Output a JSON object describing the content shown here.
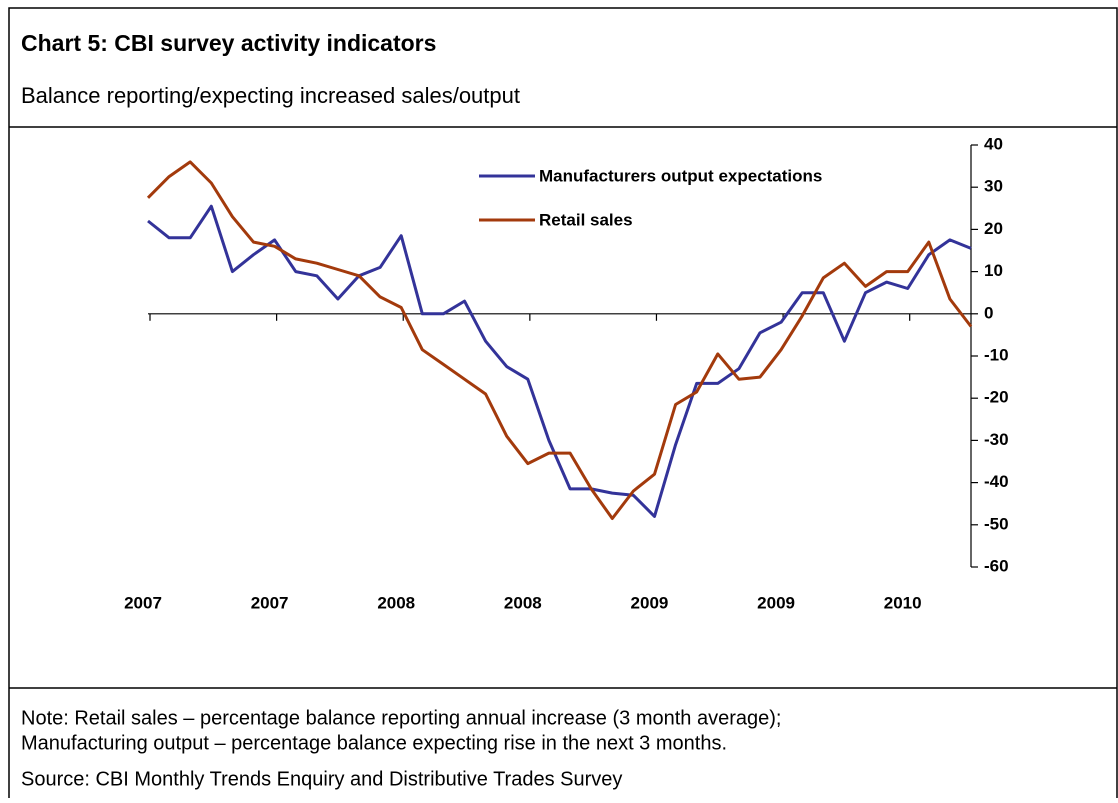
{
  "chart_data": {
    "type": "line",
    "title": "Chart 5: CBI survey activity indicators",
    "subtitle": "Balance reporting/expecting increased sales/output",
    "note": [
      "Note: Retail sales – percentage balance reporting annual increase (3 month average);",
      "Manufacturing output – percentage balance expecting rise in the next 3 months."
    ],
    "source": "Source: CBI Monthly Trends Enquiry and Distributive Trades Survey",
    "categories": [
      "2007",
      null,
      null,
      null,
      null,
      null,
      "2007",
      null,
      null,
      null,
      null,
      null,
      "2008",
      null,
      null,
      null,
      null,
      null,
      "2008",
      null,
      null,
      null,
      null,
      null,
      "2009",
      null,
      null,
      null,
      null,
      null,
      "2009",
      null,
      null,
      null,
      null,
      null,
      "2010",
      null,
      null,
      null
    ],
    "series": [
      {
        "name": "Manufacturers output expectations",
        "color": "#333399",
        "values": [
          22,
          18,
          18,
          25.5,
          10,
          14,
          17.5,
          10,
          9,
          3.5,
          9,
          11,
          18.5,
          0,
          0,
          3,
          -6.5,
          -12.5,
          -15.5,
          -30,
          -41.5,
          -41.5,
          -42.5,
          -43,
          -48,
          -31,
          -16.5,
          -16.5,
          -13,
          -4.5,
          -2,
          5,
          5,
          -6.5,
          5,
          7.5,
          6,
          14,
          17.5,
          15.5
        ]
      },
      {
        "name": "Retail sales",
        "color": "#A33A0C",
        "values": [
          27.5,
          32.5,
          36,
          31,
          23,
          17,
          16,
          13,
          12,
          10.5,
          9,
          4,
          1.5,
          -8.5,
          -12,
          -15.5,
          -19,
          -29,
          -35.5,
          -33,
          -33,
          -41.5,
          -48.5,
          -42,
          -38,
          -21.5,
          -18.5,
          -9.5,
          -15.5,
          -15,
          -8.5,
          -0.5,
          8.5,
          12,
          6.5,
          10,
          10,
          17,
          3.5,
          -3
        ]
      }
    ],
    "ylim": [
      -60,
      40
    ],
    "yticks": [
      -60,
      -50,
      -40,
      -30,
      -20,
      -10,
      0,
      10,
      20,
      30,
      40
    ],
    "y_axis_side": "right",
    "grid": false
  }
}
